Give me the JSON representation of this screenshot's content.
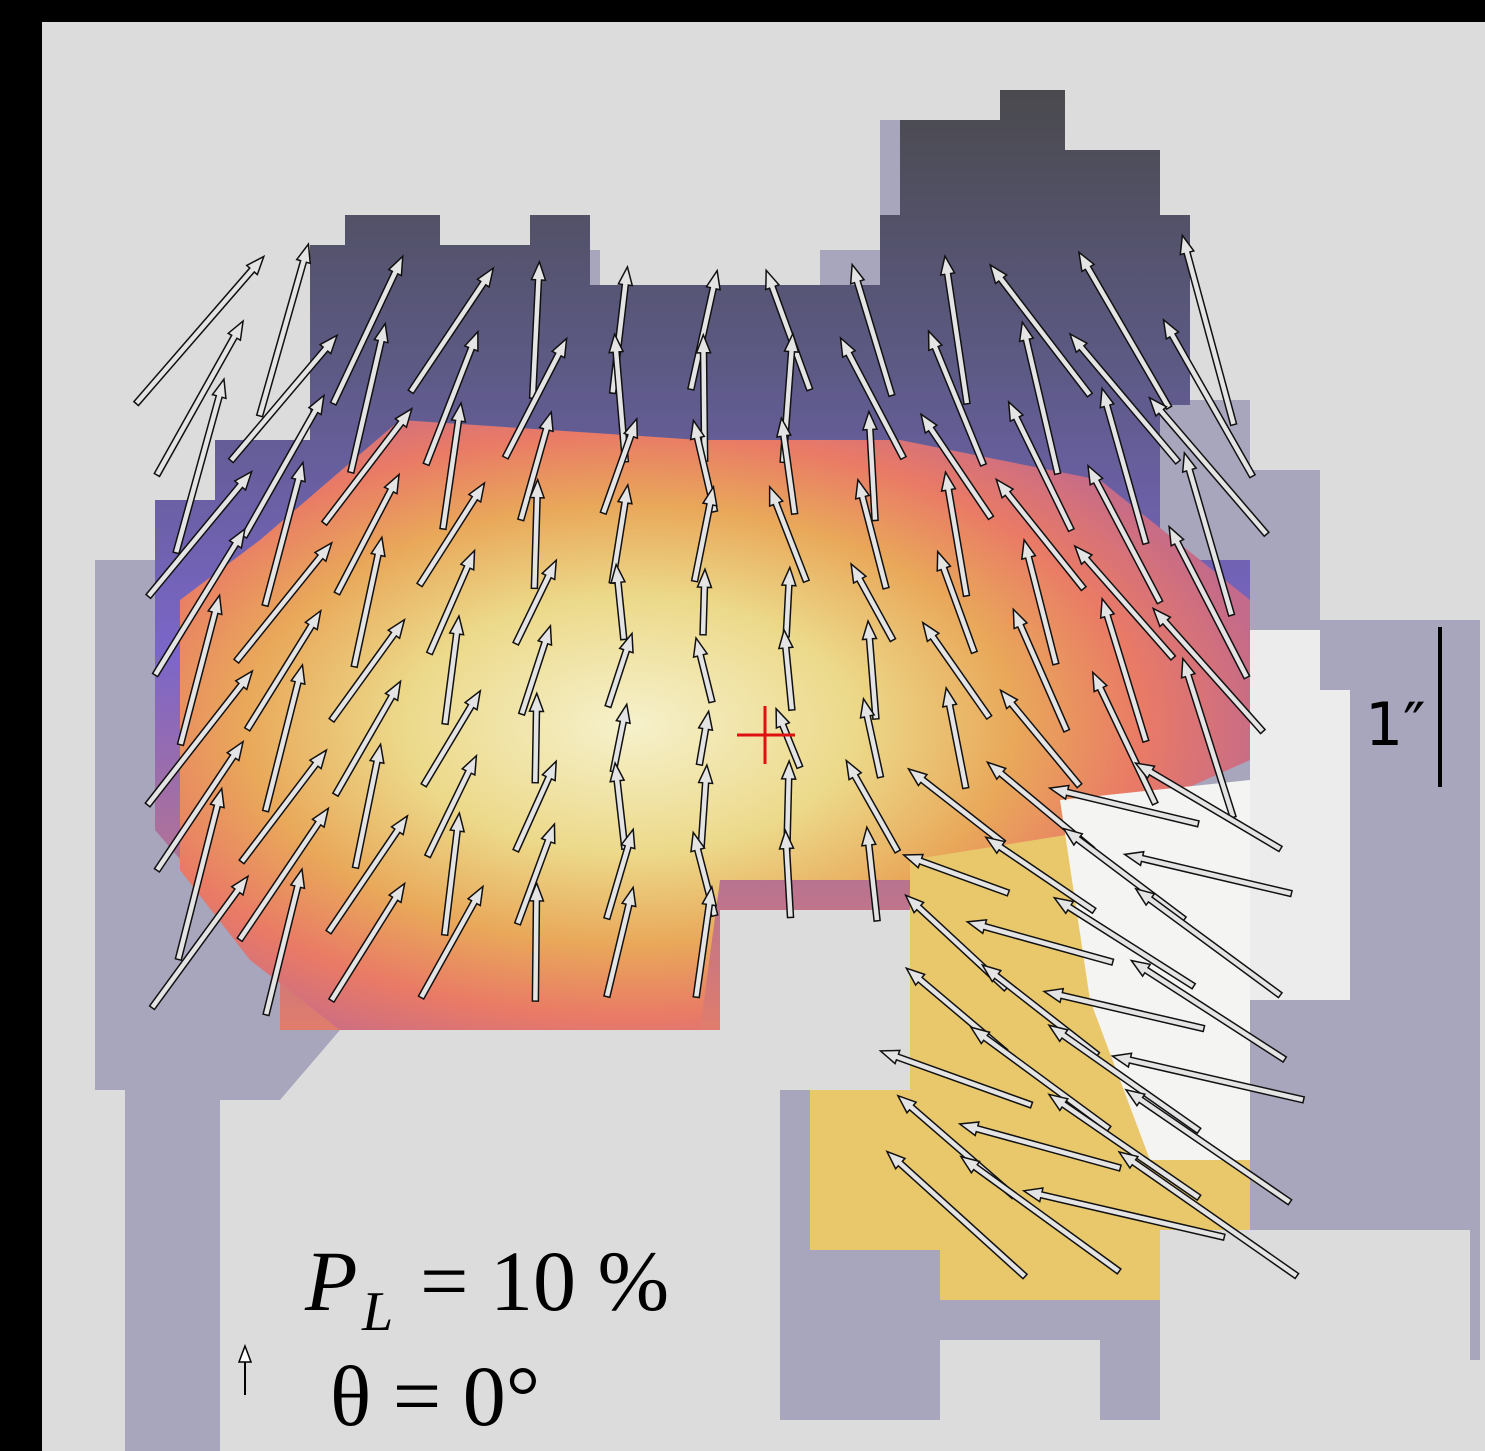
{
  "scale_bar": {
    "label": "1″"
  },
  "legend": {
    "pl_symbol": "P",
    "pl_subscript": "L",
    "pl_value": "= 10 %",
    "angle": "θ = 0°"
  }
}
